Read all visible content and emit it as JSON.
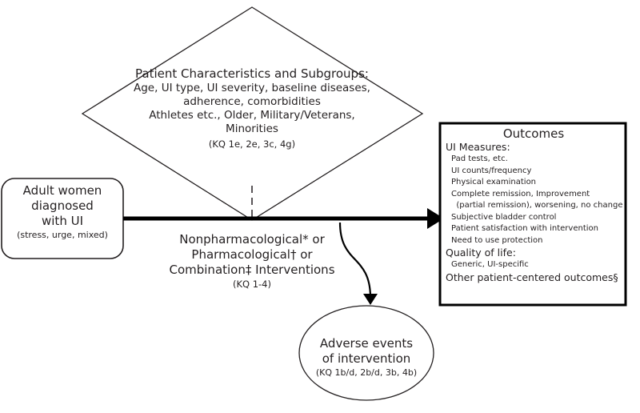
{
  "diamond": {
    "title": "Patient Characteristics and Subgroups:",
    "lines": [
      "Age, UI type, UI severity, baseline diseases,",
      "adherence, comorbidities",
      "Athletes etc., Older, Military/Veterans,",
      "Minorities"
    ],
    "kq": "(KQ 1e, 2e, 3c, 4g)"
  },
  "population": {
    "title": "Adult women\ndiagnosed\nwith UI",
    "subtitle": "(stress, urge, mixed)"
  },
  "interventions": {
    "lines": "Nonpharmacological* or\nPharmacological† or\nCombination‡ Interventions",
    "kq": "(KQ 1-4)"
  },
  "adverse": {
    "title": "Adverse events\nof intervention",
    "kq": "(KQ 1b/d, 2b/d, 3b, 4b)"
  },
  "outcomes": {
    "title": "Outcomes",
    "ui_heading": "UI Measures:",
    "ui_items": [
      "Pad tests, etc.",
      "UI counts/frequency",
      "Physical examination",
      "Complete remission, Improvement",
      "  (partial remission), worsening, no change",
      "Subjective bladder control",
      "Patient satisfaction with intervention",
      "Need to use protection"
    ],
    "qol_heading": "Quality of life:",
    "qol_items": [
      "Generic, UI-specific"
    ],
    "other": "Other patient-centered outcomes§"
  }
}
